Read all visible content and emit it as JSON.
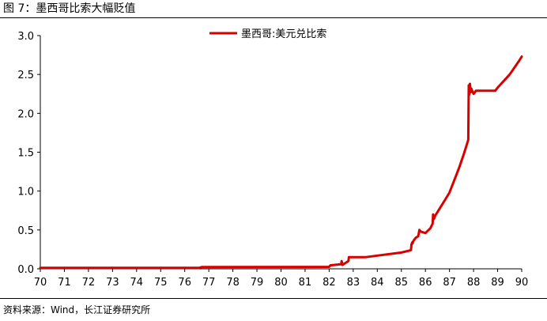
{
  "figure_title": "图 7：墨西哥比索大幅贬值",
  "source": "资料来源：Wind，长江证券研究所",
  "colors": {
    "series": "#d90000",
    "axis": "#000000"
  },
  "chart_data": {
    "type": "line",
    "title": "",
    "xlabel": "",
    "ylabel": "",
    "xlim": [
      70,
      90
    ],
    "ylim": [
      0.0,
      3.0
    ],
    "x_ticks": [
      "70",
      "71",
      "72",
      "73",
      "74",
      "75",
      "76",
      "77",
      "78",
      "79",
      "80",
      "81",
      "82",
      "83",
      "84",
      "85",
      "86",
      "87",
      "88",
      "89",
      "90"
    ],
    "y_ticks": [
      "0.0",
      "0.5",
      "1.0",
      "1.5",
      "2.0",
      "2.5",
      "3.0"
    ],
    "grid": false,
    "legend": {
      "position": "top-center",
      "entries": [
        "墨西哥:美元兑比索"
      ]
    },
    "series": [
      {
        "name": "墨西哥:美元兑比索",
        "x": [
          70,
          76.6,
          76.7,
          82.0,
          82.05,
          82.5,
          82.52,
          82.55,
          82.8,
          82.82,
          83.5,
          84.0,
          85.0,
          85.4,
          85.42,
          85.45,
          85.47,
          85.5,
          85.6,
          85.7,
          85.75,
          85.8,
          86.0,
          86.1,
          86.2,
          86.3,
          86.32,
          86.35,
          86.4,
          86.6,
          86.8,
          87.0,
          87.2,
          87.4,
          87.6,
          87.78,
          87.8,
          87.82,
          87.85,
          87.88,
          87.9,
          88.0,
          88.1,
          88.9,
          89.0,
          89.5,
          89.9,
          90.0
        ],
        "y": [
          0.0125,
          0.0125,
          0.022,
          0.025,
          0.045,
          0.06,
          0.1,
          0.05,
          0.1,
          0.15,
          0.15,
          0.17,
          0.21,
          0.24,
          0.31,
          0.34,
          0.33,
          0.36,
          0.4,
          0.42,
          0.5,
          0.48,
          0.46,
          0.49,
          0.52,
          0.58,
          0.7,
          0.64,
          0.68,
          0.78,
          0.88,
          0.98,
          1.14,
          1.3,
          1.48,
          1.66,
          2.36,
          2.24,
          2.38,
          2.27,
          2.32,
          2.25,
          2.29,
          2.29,
          2.33,
          2.5,
          2.68,
          2.73
        ]
      }
    ]
  }
}
